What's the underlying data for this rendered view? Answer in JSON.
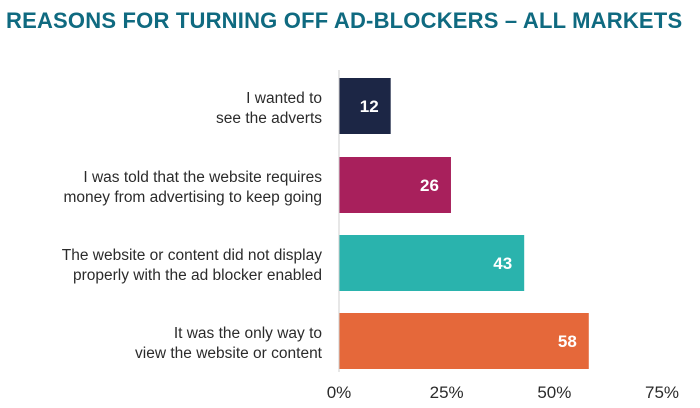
{
  "chart_data": {
    "type": "bar",
    "orientation": "horizontal",
    "title": "REASONS FOR TURNING OFF AD-BLOCKERS – ALL MARKETS",
    "categories": [
      [
        "I wanted to",
        "see the adverts"
      ],
      [
        "I was told that the website requires",
        "money from advertising to keep going"
      ],
      [
        "The website or content did not display",
        "properly with the ad blocker enabled"
      ],
      [
        "It was the only way to",
        "view the website or content"
      ]
    ],
    "values": [
      12,
      26,
      43,
      58
    ],
    "colors": [
      "#1c2645",
      "#a8205c",
      "#2ab3ad",
      "#e5683a"
    ],
    "xlim": [
      0,
      75
    ],
    "xticks": [
      0,
      25,
      50,
      75
    ],
    "xtick_labels": [
      "0%",
      "25%",
      "50%",
      "75%"
    ],
    "grid": false,
    "legend": "none"
  }
}
